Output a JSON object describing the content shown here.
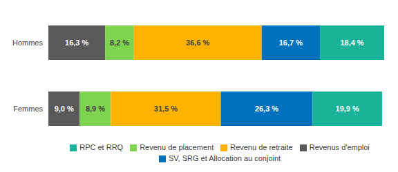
{
  "chart_data": {
    "type": "bar",
    "orientation": "horizontal",
    "stacked": true,
    "data_labels": true,
    "tick_labels": "y",
    "legend": "bottom",
    "categories": [
      "Hommes",
      "Femmes"
    ],
    "xlim": [
      0,
      96.2
    ],
    "series": [
      {
        "name": "Revenus d'emploi",
        "color": "#595959",
        "values": [
          16.3,
          9.0
        ],
        "value_labels": [
          "16,3 %",
          "9,0 %"
        ]
      },
      {
        "name": "Revenu de placement",
        "color": "#7ed34f",
        "values": [
          8.2,
          8.9
        ],
        "value_labels": [
          "8,2 %",
          "8,9 %"
        ]
      },
      {
        "name": "Revenu de retraite",
        "color": "#ffb300",
        "values": [
          36.6,
          31.5
        ],
        "value_labels": [
          "36,6 %",
          "31,5 %"
        ]
      },
      {
        "name": "SV, SRG et Allocation au conjoint",
        "color": "#0071bc",
        "values": [
          16.7,
          26.3
        ],
        "value_labels": [
          "16,7 %",
          "26,3 %"
        ]
      },
      {
        "name": "RPC et RRQ",
        "color": "#1ab39a",
        "values": [
          18.4,
          19.9
        ],
        "value_labels": [
          "18,4 %",
          "19,9 %"
        ]
      }
    ]
  }
}
